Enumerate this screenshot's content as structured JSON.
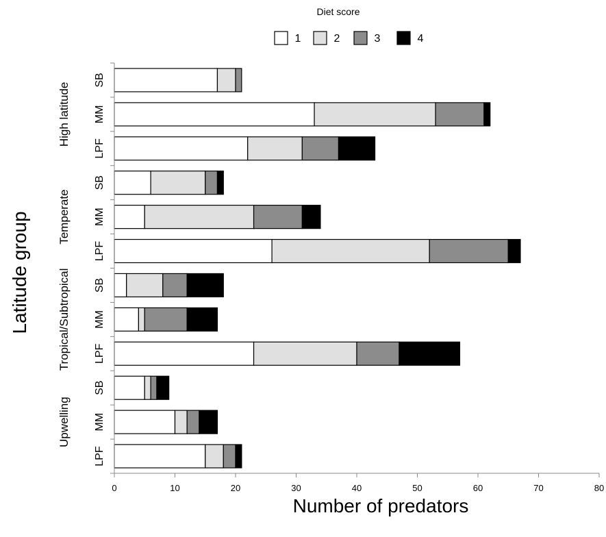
{
  "chart_data": {
    "type": "bar",
    "orientation": "horizontal",
    "stacked": true,
    "xlabel": "Number of predators",
    "ylabel": "Latitude group",
    "xlim": [
      0,
      80
    ],
    "x_ticks": [
      "0",
      "10",
      "20",
      "30",
      "40",
      "50",
      "60",
      "70",
      "80"
    ],
    "grid": false,
    "legend": {
      "title": "Diet score",
      "placement": "top-center",
      "entries": [
        "1",
        "2",
        "3",
        "4"
      ]
    },
    "series_colors": [
      "#ffffff",
      "#e0e0e0",
      "#8c8c8c",
      "#000000"
    ],
    "groups": [
      {
        "name": "High latitude",
        "categories": [
          "SB",
          "MM",
          "LPF"
        ]
      },
      {
        "name": "Temperate",
        "categories": [
          "SB",
          "MM",
          "LPF"
        ]
      },
      {
        "name": "Tropical/Subtropical",
        "categories": [
          "SB",
          "MM",
          "LPF"
        ]
      },
      {
        "name": "Upwelling",
        "categories": [
          "SB",
          "MM",
          "LPF"
        ]
      }
    ],
    "categories": [
      "SB",
      "MM",
      "LPF",
      "SB",
      "MM",
      "LPF",
      "SB",
      "MM",
      "LPF",
      "SB",
      "MM",
      "LPF"
    ],
    "series": [
      {
        "name": "1",
        "values": [
          17,
          33,
          22,
          6,
          5,
          26,
          2,
          4,
          23,
          5,
          10,
          15
        ]
      },
      {
        "name": "2",
        "values": [
          3,
          20,
          9,
          9,
          18,
          26,
          6,
          1,
          17,
          1,
          2,
          3
        ]
      },
      {
        "name": "3",
        "values": [
          1,
          8,
          6,
          2,
          8,
          13,
          4,
          7,
          7,
          1,
          2,
          2
        ]
      },
      {
        "name": "4",
        "values": [
          0,
          1,
          6,
          1,
          3,
          2,
          6,
          5,
          10,
          2,
          3,
          1
        ]
      }
    ]
  }
}
